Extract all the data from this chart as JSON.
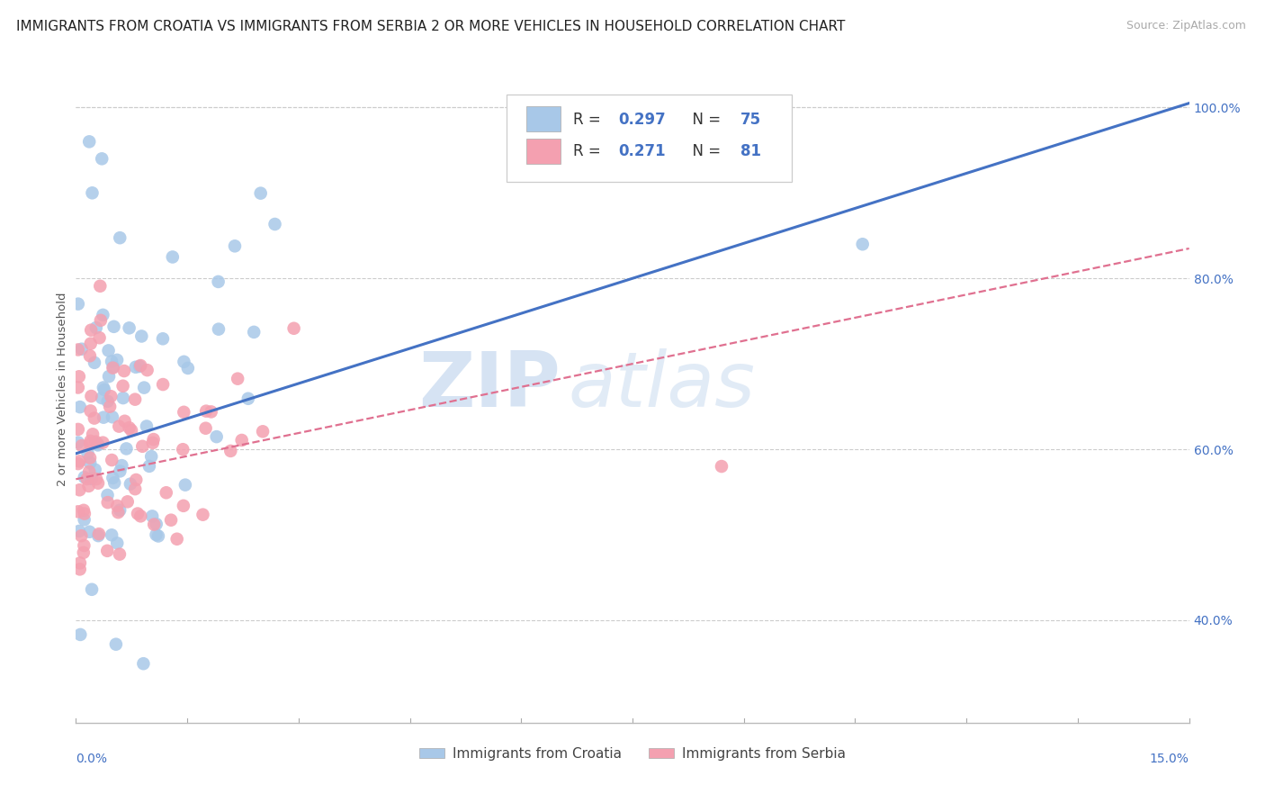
{
  "title": "IMMIGRANTS FROM CROATIA VS IMMIGRANTS FROM SERBIA 2 OR MORE VEHICLES IN HOUSEHOLD CORRELATION CHART",
  "source": "Source: ZipAtlas.com",
  "ylabel": "2 or more Vehicles in Household",
  "yticks": [
    "40.0%",
    "60.0%",
    "80.0%",
    "100.0%"
  ],
  "ytick_vals": [
    0.4,
    0.6,
    0.8,
    1.0
  ],
  "xmin": 0.0,
  "xmax": 0.15,
  "ymin": 0.28,
  "ymax": 1.06,
  "R_croatia": 0.297,
  "N_croatia": 75,
  "R_serbia": 0.271,
  "N_serbia": 81,
  "color_croatia": "#a8c8e8",
  "color_serbia": "#f4a0b0",
  "color_line_croatia": "#4472c4",
  "color_line_serbia": "#e07090",
  "legend_label_croatia": "Immigrants from Croatia",
  "legend_label_serbia": "Immigrants from Serbia",
  "watermark_zip": "ZIP",
  "watermark_atlas": "atlas",
  "title_fontsize": 11,
  "source_fontsize": 9,
  "axis_label_fontsize": 9.5,
  "tick_fontsize": 10,
  "legend_fontsize": 12,
  "line_croatia_y0": 0.595,
  "line_croatia_y1": 1.005,
  "line_serbia_y0": 0.565,
  "line_serbia_y1": 0.835
}
